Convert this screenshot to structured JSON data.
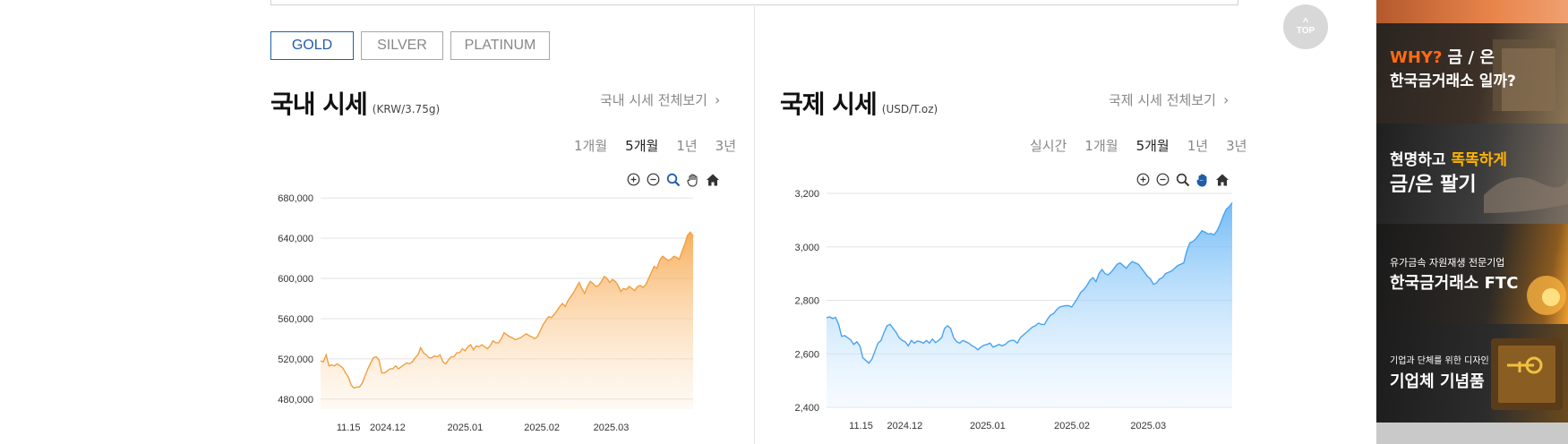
{
  "metal_tabs": [
    {
      "label": "GOLD",
      "active": true
    },
    {
      "label": "SILVER",
      "active": false
    },
    {
      "label": "PLATINUM",
      "active": false
    }
  ],
  "domestic": {
    "title": "국내 시세",
    "unit": "(KRW/3.75g)",
    "view_all": "국내 시세 전체보기",
    "periods": [
      "1개월",
      "5개월",
      "1년",
      "3년"
    ],
    "active_period": "5개월"
  },
  "international": {
    "title": "국제 시세",
    "unit": "(USD/T.oz)",
    "view_all": "국제 시세 전체보기",
    "periods": [
      "실시간",
      "1개월",
      "5개월",
      "1년",
      "3년"
    ],
    "active_period": "5개월"
  },
  "toolbar_icons": [
    "zoom-in-icon",
    "zoom-out-icon",
    "magnifier-icon",
    "pan-hand-icon",
    "home-icon"
  ],
  "top_button": {
    "label": "TOP"
  },
  "banners": {
    "why": {
      "prefix": "WHY?",
      "rest": " 금 / 은",
      "line2": "한국금거래소 일까?"
    },
    "sell": {
      "pre": "현명하고 ",
      "highlight": "똑똑하게",
      "line2": "금/은 팔기"
    },
    "ftc": {
      "line1": "유가금속 자원재생 전문기업",
      "line2": "한국금거래소 FTC"
    },
    "gift": {
      "line1": "기업과 단체를 위한 디자인",
      "line2": "기업체 기념품"
    }
  },
  "colors": {
    "accent": "#1f5da8",
    "gold_line": "#f0a040",
    "intl_line": "#4aa3f0",
    "why_orange": "#ff6a13",
    "banner_yellow": "#ffb300"
  },
  "chart_data": [
    {
      "type": "area",
      "title": "국내 시세",
      "unit": "KRW/3.75g",
      "ylim": [
        470000,
        690000
      ],
      "yticks": [
        480000,
        520000,
        560000,
        600000,
        640000,
        680000
      ],
      "ytick_labels": [
        "480,000",
        "520,000",
        "560,000",
        "600,000",
        "640,000",
        "680,000"
      ],
      "xticks": [
        {
          "label": "11.15",
          "pos": 0.075
        },
        {
          "label": "2024.12",
          "pos": 0.18
        },
        {
          "label": "2025.01",
          "pos": 0.388
        },
        {
          "label": "2025.02",
          "pos": 0.594
        },
        {
          "label": "2025.03",
          "pos": 0.78
        }
      ],
      "grid": true,
      "series": [
        {
          "values": [
            518000,
            517000,
            524000,
            513000,
            514000,
            513000,
            515000,
            513000,
            511000,
            506000,
            502000,
            494000,
            491000,
            492000,
            492000,
            496000,
            503000,
            510000,
            516000,
            521000,
            522000,
            519000,
            506000,
            506000,
            508000,
            510000,
            510000,
            513000,
            510000,
            512000,
            514000,
            516000,
            515000,
            517000,
            521000,
            524000,
            531000,
            526000,
            524000,
            521000,
            521000,
            523000,
            522000,
            524000,
            517000,
            515000,
            519000,
            522000,
            522000,
            526000,
            526000,
            530000,
            528000,
            532000,
            534000,
            529000,
            533000,
            532000,
            534000,
            532000,
            530000,
            533000,
            538000,
            536000,
            536000,
            540000,
            546000,
            544000,
            542000,
            541000,
            539000,
            540000,
            541000,
            543000,
            545000,
            543000,
            542000,
            540000,
            542000,
            548000,
            554000,
            558000,
            562000,
            561000,
            564000,
            568000,
            572000,
            575000,
            572000,
            578000,
            582000,
            586000,
            591000,
            596000,
            590000,
            585000,
            592000,
            597000,
            595000,
            592000,
            593000,
            597000,
            602000,
            600000,
            596000,
            599000,
            597000,
            593000,
            587000,
            590000,
            589000,
            592000,
            590000,
            588000,
            592000,
            593000,
            591000,
            594000,
            600000,
            606000,
            612000,
            610000,
            618000,
            622000,
            620000,
            618000,
            619000,
            622000,
            621000,
            619000,
            627000,
            634000,
            643000,
            646000,
            642000
          ]
        }
      ]
    },
    {
      "type": "area",
      "title": "국제 시세",
      "unit": "USD/T.oz",
      "ylim": [
        2400,
        3200
      ],
      "yticks": [
        2400,
        2600,
        2800,
        3000,
        3200
      ],
      "ytick_labels": [
        "2,400",
        "2,600",
        "2,800",
        "3,000",
        "3,200"
      ],
      "xticks": [
        {
          "label": "11.15",
          "pos": 0.085
        },
        {
          "label": "2024.12",
          "pos": 0.193
        },
        {
          "label": "2025.01",
          "pos": 0.397
        },
        {
          "label": "2025.02",
          "pos": 0.605
        },
        {
          "label": "2025.03",
          "pos": 0.793
        }
      ],
      "grid": true,
      "series": [
        {
          "values": [
            2735,
            2738,
            2732,
            2736,
            2710,
            2665,
            2668,
            2660,
            2652,
            2635,
            2645,
            2630,
            2585,
            2575,
            2565,
            2580,
            2610,
            2640,
            2650,
            2680,
            2705,
            2710,
            2695,
            2680,
            2660,
            2650,
            2645,
            2630,
            2650,
            2640,
            2648,
            2645,
            2640,
            2650,
            2640,
            2655,
            2642,
            2650,
            2660,
            2695,
            2705,
            2695,
            2660,
            2645,
            2640,
            2650,
            2645,
            2640,
            2630,
            2625,
            2615,
            2625,
            2632,
            2635,
            2640,
            2625,
            2630,
            2635,
            2630,
            2635,
            2645,
            2650,
            2650,
            2640,
            2660,
            2670,
            2680,
            2690,
            2700,
            2705,
            2715,
            2710,
            2710,
            2730,
            2745,
            2750,
            2765,
            2775,
            2778,
            2780,
            2780,
            2775,
            2792,
            2810,
            2830,
            2840,
            2855,
            2875,
            2885,
            2870,
            2900,
            2915,
            2900,
            2895,
            2905,
            2920,
            2935,
            2940,
            2930,
            2920,
            2935,
            2945,
            2940,
            2935,
            2920,
            2905,
            2890,
            2880,
            2860,
            2865,
            2880,
            2885,
            2900,
            2905,
            2910,
            2920,
            2930,
            2935,
            2940,
            2985,
            3015,
            3020,
            3030,
            3045,
            3060,
            3055,
            3048,
            3050,
            3045,
            3060,
            3085,
            3115,
            3140,
            3150,
            3165
          ]
        }
      ]
    }
  ]
}
